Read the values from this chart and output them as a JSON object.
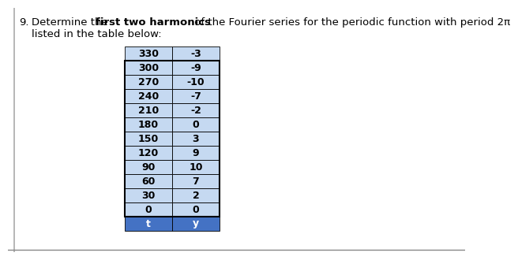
{
  "title_number": "9.",
  "title_pre_bold": "Determine the ",
  "title_bold": "first two harmonics",
  "title_post_bold": " of the Fourier series for the periodic function with period 2π",
  "title_line2": "listed in the table below:",
  "header": [
    "t",
    "y"
  ],
  "rows": [
    [
      0,
      0
    ],
    [
      30,
      2
    ],
    [
      60,
      7
    ],
    [
      90,
      10
    ],
    [
      120,
      9
    ],
    [
      150,
      3
    ],
    [
      180,
      0
    ],
    [
      210,
      -2
    ],
    [
      240,
      -7
    ],
    [
      270,
      -10
    ],
    [
      300,
      -9
    ],
    [
      330,
      -3
    ]
  ],
  "header_bg": "#4472C4",
  "header_text_color": "#FFFFFF",
  "data_row_bg": "#C5D9F1",
  "cell_text_color": "#000000",
  "border_color": "#000000",
  "font_size_title": 9.5,
  "font_size_table": 9.0,
  "bg_color": "#FFFFFF",
  "left_border_color": "#5555AA",
  "bottom_line_color": "#888888"
}
